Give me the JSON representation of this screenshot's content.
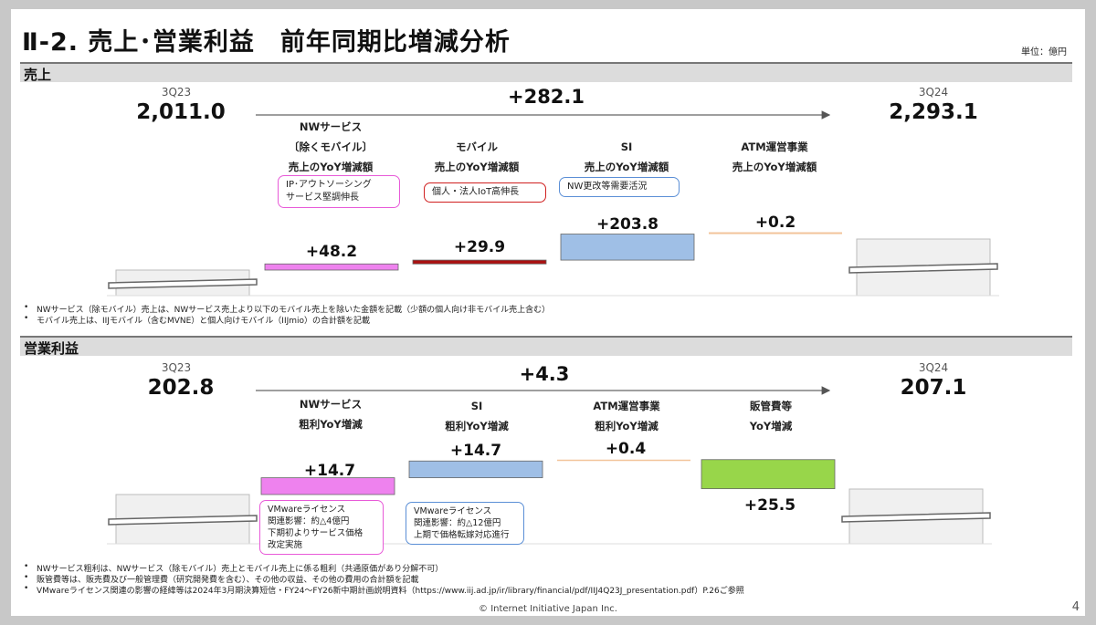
{
  "title": "Ⅱ-2.  売上･営業利益　前年同期比増減分析",
  "unit": "単位：億円",
  "sales": {
    "header": "売上",
    "start_period": "3Q23",
    "start_value": "2,011.0",
    "end_period": "3Q24",
    "end_value": "2,293.1",
    "total_change": "+282.1",
    "categories": [
      {
        "label": "NWサービス\n〔除くモバイル〕\n売上のYoY増減額",
        "value": "+48.2"
      },
      {
        "label": "モバイル\n売上のYoY増減額",
        "value": "+29.9"
      },
      {
        "label": "SI\n売上のYoY増減額",
        "value": "+203.8"
      },
      {
        "label": "ATM運営事業\n売上のYoY増減額",
        "value": "+0.2"
      }
    ],
    "callouts": [
      "IP･アウトソーシング\nサービス堅調伸長",
      "個人・法人IoT高伸長",
      "NW更改等需要活況"
    ],
    "notes": [
      "NWサービス（除モバイル）売上は、NWサービス売上より以下のモバイル売上を除いた金額を記載（少額の個人向け非モバイル売上含む）",
      "モバイル売上は、IIJモバイル（含むMVNE）と個人向けモバイル（IIJmio）の合計額を記載"
    ]
  },
  "profit": {
    "header": "営業利益",
    "start_period": "3Q23",
    "start_value": "202.8",
    "end_period": "3Q24",
    "end_value": "207.1",
    "total_change": "+4.3",
    "categories": [
      {
        "label": "NWサービス\n粗利YoY増減",
        "value": "+14.7"
      },
      {
        "label": "SI\n粗利YoY増減",
        "value": "+14.7"
      },
      {
        "label": "ATM運営事業\n粗利YoY増減",
        "value": "+0.4"
      },
      {
        "label": "販管費等\nYoY増減",
        "value": "+25.5"
      }
    ],
    "callouts": [
      "VMwareライセンス\n関連影響：約△4億円\n下期初よりサービス価格\n改定実施",
      "VMwareライセンス\n関連影響：約△12億円\n上期で価格転嫁対応進行"
    ],
    "notes": [
      "NWサービス粗利は、NWサービス（除モバイル）売上とモバイル売上に係る粗利（共通原価があり分解不可）",
      "販管費等は、販売費及び一般管理費（研究開発費を含む）、その他の収益、その他の費用の合計額を記載",
      "VMwareライセンス関連の影響の経緯等は2024年3月期決算短信・FY24～FY26新中期計画説明資料（https://www.iij.ad.jp/ir/library/financial/pdf/IIJ4Q23J_presentation.pdf）P.26ご参照"
    ]
  },
  "footer": "© Internet Initiative Japan Inc.",
  "page_number": "4",
  "chart_data": [
    {
      "type": "bar",
      "subtype": "waterfall",
      "ylabel": "",
      "categories": [
        "3Q23",
        "NWサービス〔除くモバイル〕",
        "モバイル",
        "SI",
        "ATM運営事業",
        "3Q24"
      ],
      "values": [
        2011.0,
        48.2,
        29.9,
        203.8,
        0.2,
        2293.1
      ],
      "total_change": 282.1,
      "axis_break": true,
      "colors": [
        "#eeeeee",
        "#ee82ee",
        "#aa1111",
        "#9fbfe6",
        "#f2c49a",
        "#eeeeee"
      ]
    },
    {
      "type": "bar",
      "subtype": "waterfall",
      "ylabel": "",
      "categories": [
        "3Q23",
        "NWサービス",
        "SI",
        "ATM運営事業",
        "販管費等",
        "3Q24"
      ],
      "values": [
        202.8,
        14.7,
        14.7,
        0.4,
        -25.5,
        207.1
      ],
      "total_change": 4.3,
      "axis_break": true,
      "colors": [
        "#eeeeee",
        "#ee82ee",
        "#9fbfe6",
        "#f2c49a",
        "#98d64a",
        "#eeeeee"
      ]
    }
  ]
}
